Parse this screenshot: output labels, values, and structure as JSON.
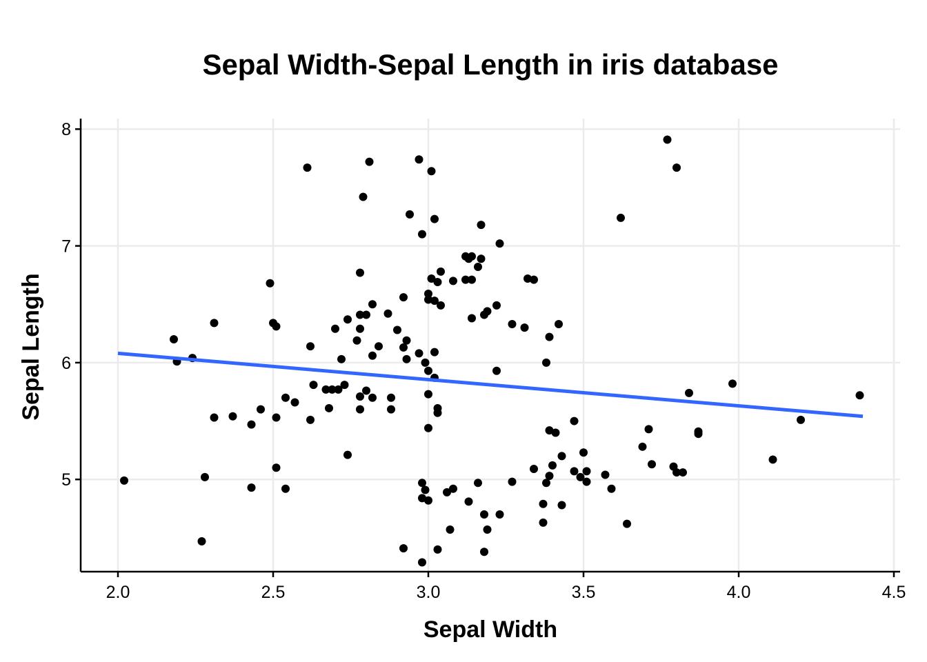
{
  "chart_data": {
    "type": "scatter",
    "title": "Sepal Width-Sepal Length in iris database",
    "xlabel": "Sepal Width",
    "ylabel": "Sepal Length",
    "xlim": [
      1.88,
      4.52
    ],
    "ylim": [
      4.21,
      8.09
    ],
    "x_ticks": [
      2.0,
      2.5,
      3.0,
      3.5,
      4.0,
      4.5
    ],
    "x_tick_labels": [
      "2.0",
      "2.5",
      "3.0",
      "3.5",
      "4.0",
      "4.5"
    ],
    "y_ticks": [
      5,
      6,
      7,
      8
    ],
    "y_tick_labels": [
      "5",
      "6",
      "7",
      "8"
    ],
    "grid": true,
    "point_color": "#000000",
    "trend_color": "#3366ff",
    "trend_line": {
      "x": [
        2.0,
        4.4
      ],
      "y": [
        6.08,
        5.54
      ]
    },
    "points": [
      [
        3.77,
        7.91
      ],
      [
        3.8,
        7.67
      ],
      [
        2.61,
        7.67
      ],
      [
        2.81,
        7.72
      ],
      [
        2.97,
        7.74
      ],
      [
        3.01,
        7.64
      ],
      [
        2.79,
        7.42
      ],
      [
        2.94,
        7.27
      ],
      [
        3.02,
        7.23
      ],
      [
        3.62,
        7.24
      ],
      [
        3.17,
        7.18
      ],
      [
        2.98,
        7.1
      ],
      [
        3.23,
        7.02
      ],
      [
        3.12,
        6.91
      ],
      [
        3.14,
        6.91
      ],
      [
        3.13,
        6.89
      ],
      [
        3.17,
        6.89
      ],
      [
        3.16,
        6.82
      ],
      [
        3.04,
        6.78
      ],
      [
        2.78,
        6.77
      ],
      [
        3.01,
        6.72
      ],
      [
        3.03,
        6.69
      ],
      [
        3.08,
        6.7
      ],
      [
        3.12,
        6.71
      ],
      [
        3.14,
        6.71
      ],
      [
        3.32,
        6.72
      ],
      [
        3.34,
        6.71
      ],
      [
        2.49,
        6.68
      ],
      [
        2.92,
        6.56
      ],
      [
        3.0,
        6.59
      ],
      [
        3.0,
        6.54
      ],
      [
        3.02,
        6.53
      ],
      [
        3.04,
        6.49
      ],
      [
        2.82,
        6.5
      ],
      [
        2.78,
        6.41
      ],
      [
        2.8,
        6.41
      ],
      [
        2.87,
        6.42
      ],
      [
        3.18,
        6.41
      ],
      [
        3.19,
        6.44
      ],
      [
        3.22,
        6.49
      ],
      [
        3.14,
        6.38
      ],
      [
        2.74,
        6.37
      ],
      [
        2.31,
        6.34
      ],
      [
        2.5,
        6.34
      ],
      [
        2.51,
        6.31
      ],
      [
        3.27,
        6.33
      ],
      [
        3.31,
        6.3
      ],
      [
        3.42,
        6.33
      ],
      [
        2.7,
        6.29
      ],
      [
        2.78,
        6.29
      ],
      [
        2.9,
        6.28
      ],
      [
        3.39,
        6.22
      ],
      [
        2.18,
        6.2
      ],
      [
        2.77,
        6.19
      ],
      [
        2.93,
        6.19
      ],
      [
        2.84,
        6.14
      ],
      [
        2.62,
        6.14
      ],
      [
        2.92,
        6.13
      ],
      [
        2.97,
        6.08
      ],
      [
        3.02,
        6.09
      ],
      [
        2.82,
        6.06
      ],
      [
        2.24,
        6.04
      ],
      [
        2.72,
        6.03
      ],
      [
        2.93,
        6.03
      ],
      [
        2.19,
        6.01
      ],
      [
        2.99,
        6.0
      ],
      [
        3.38,
        6.0
      ],
      [
        3.0,
        5.93
      ],
      [
        3.22,
        5.93
      ],
      [
        3.02,
        5.87
      ],
      [
        3.98,
        5.82
      ],
      [
        2.63,
        5.81
      ],
      [
        2.73,
        5.81
      ],
      [
        2.67,
        5.77
      ],
      [
        2.69,
        5.77
      ],
      [
        2.71,
        5.77
      ],
      [
        2.8,
        5.76
      ],
      [
        3.84,
        5.74
      ],
      [
        4.39,
        5.72
      ],
      [
        3.0,
        5.73
      ],
      [
        2.78,
        5.71
      ],
      [
        2.82,
        5.7
      ],
      [
        2.88,
        5.7
      ],
      [
        2.54,
        5.7
      ],
      [
        2.57,
        5.66
      ],
      [
        3.03,
        5.61
      ],
      [
        2.68,
        5.61
      ],
      [
        2.78,
        5.6
      ],
      [
        2.88,
        5.6
      ],
      [
        2.46,
        5.6
      ],
      [
        3.03,
        5.57
      ],
      [
        2.31,
        5.53
      ],
      [
        2.37,
        5.54
      ],
      [
        2.51,
        5.53
      ],
      [
        2.62,
        5.51
      ],
      [
        4.2,
        5.51
      ],
      [
        3.47,
        5.5
      ],
      [
        2.43,
        5.47
      ],
      [
        3.0,
        5.44
      ],
      [
        3.71,
        5.43
      ],
      [
        3.39,
        5.42
      ],
      [
        3.41,
        5.4
      ],
      [
        3.87,
        5.41
      ],
      [
        3.87,
        5.39
      ],
      [
        3.69,
        5.28
      ],
      [
        3.5,
        5.23
      ],
      [
        3.43,
        5.2
      ],
      [
        2.74,
        5.21
      ],
      [
        4.11,
        5.17
      ],
      [
        3.72,
        5.13
      ],
      [
        3.4,
        5.12
      ],
      [
        3.79,
        5.11
      ],
      [
        3.34,
        5.09
      ],
      [
        2.51,
        5.1
      ],
      [
        3.47,
        5.07
      ],
      [
        3.51,
        5.07
      ],
      [
        3.8,
        5.06
      ],
      [
        3.82,
        5.06
      ],
      [
        3.57,
        5.04
      ],
      [
        3.39,
        5.03
      ],
      [
        3.49,
        5.02
      ],
      [
        2.28,
        5.02
      ],
      [
        2.02,
        4.99
      ],
      [
        3.27,
        4.98
      ],
      [
        3.38,
        4.97
      ],
      [
        3.51,
        4.98
      ],
      [
        2.98,
        4.97
      ],
      [
        3.16,
        4.97
      ],
      [
        2.43,
        4.93
      ],
      [
        2.54,
        4.92
      ],
      [
        2.99,
        4.91
      ],
      [
        3.08,
        4.92
      ],
      [
        3.59,
        4.92
      ],
      [
        3.06,
        4.89
      ],
      [
        2.98,
        4.84
      ],
      [
        3.0,
        4.82
      ],
      [
        3.13,
        4.81
      ],
      [
        3.37,
        4.79
      ],
      [
        3.43,
        4.78
      ],
      [
        3.18,
        4.7
      ],
      [
        3.23,
        4.7
      ],
      [
        3.37,
        4.63
      ],
      [
        3.64,
        4.62
      ],
      [
        3.07,
        4.57
      ],
      [
        3.19,
        4.57
      ],
      [
        2.27,
        4.47
      ],
      [
        2.92,
        4.41
      ],
      [
        3.03,
        4.4
      ],
      [
        3.18,
        4.38
      ],
      [
        2.98,
        4.29
      ]
    ]
  }
}
